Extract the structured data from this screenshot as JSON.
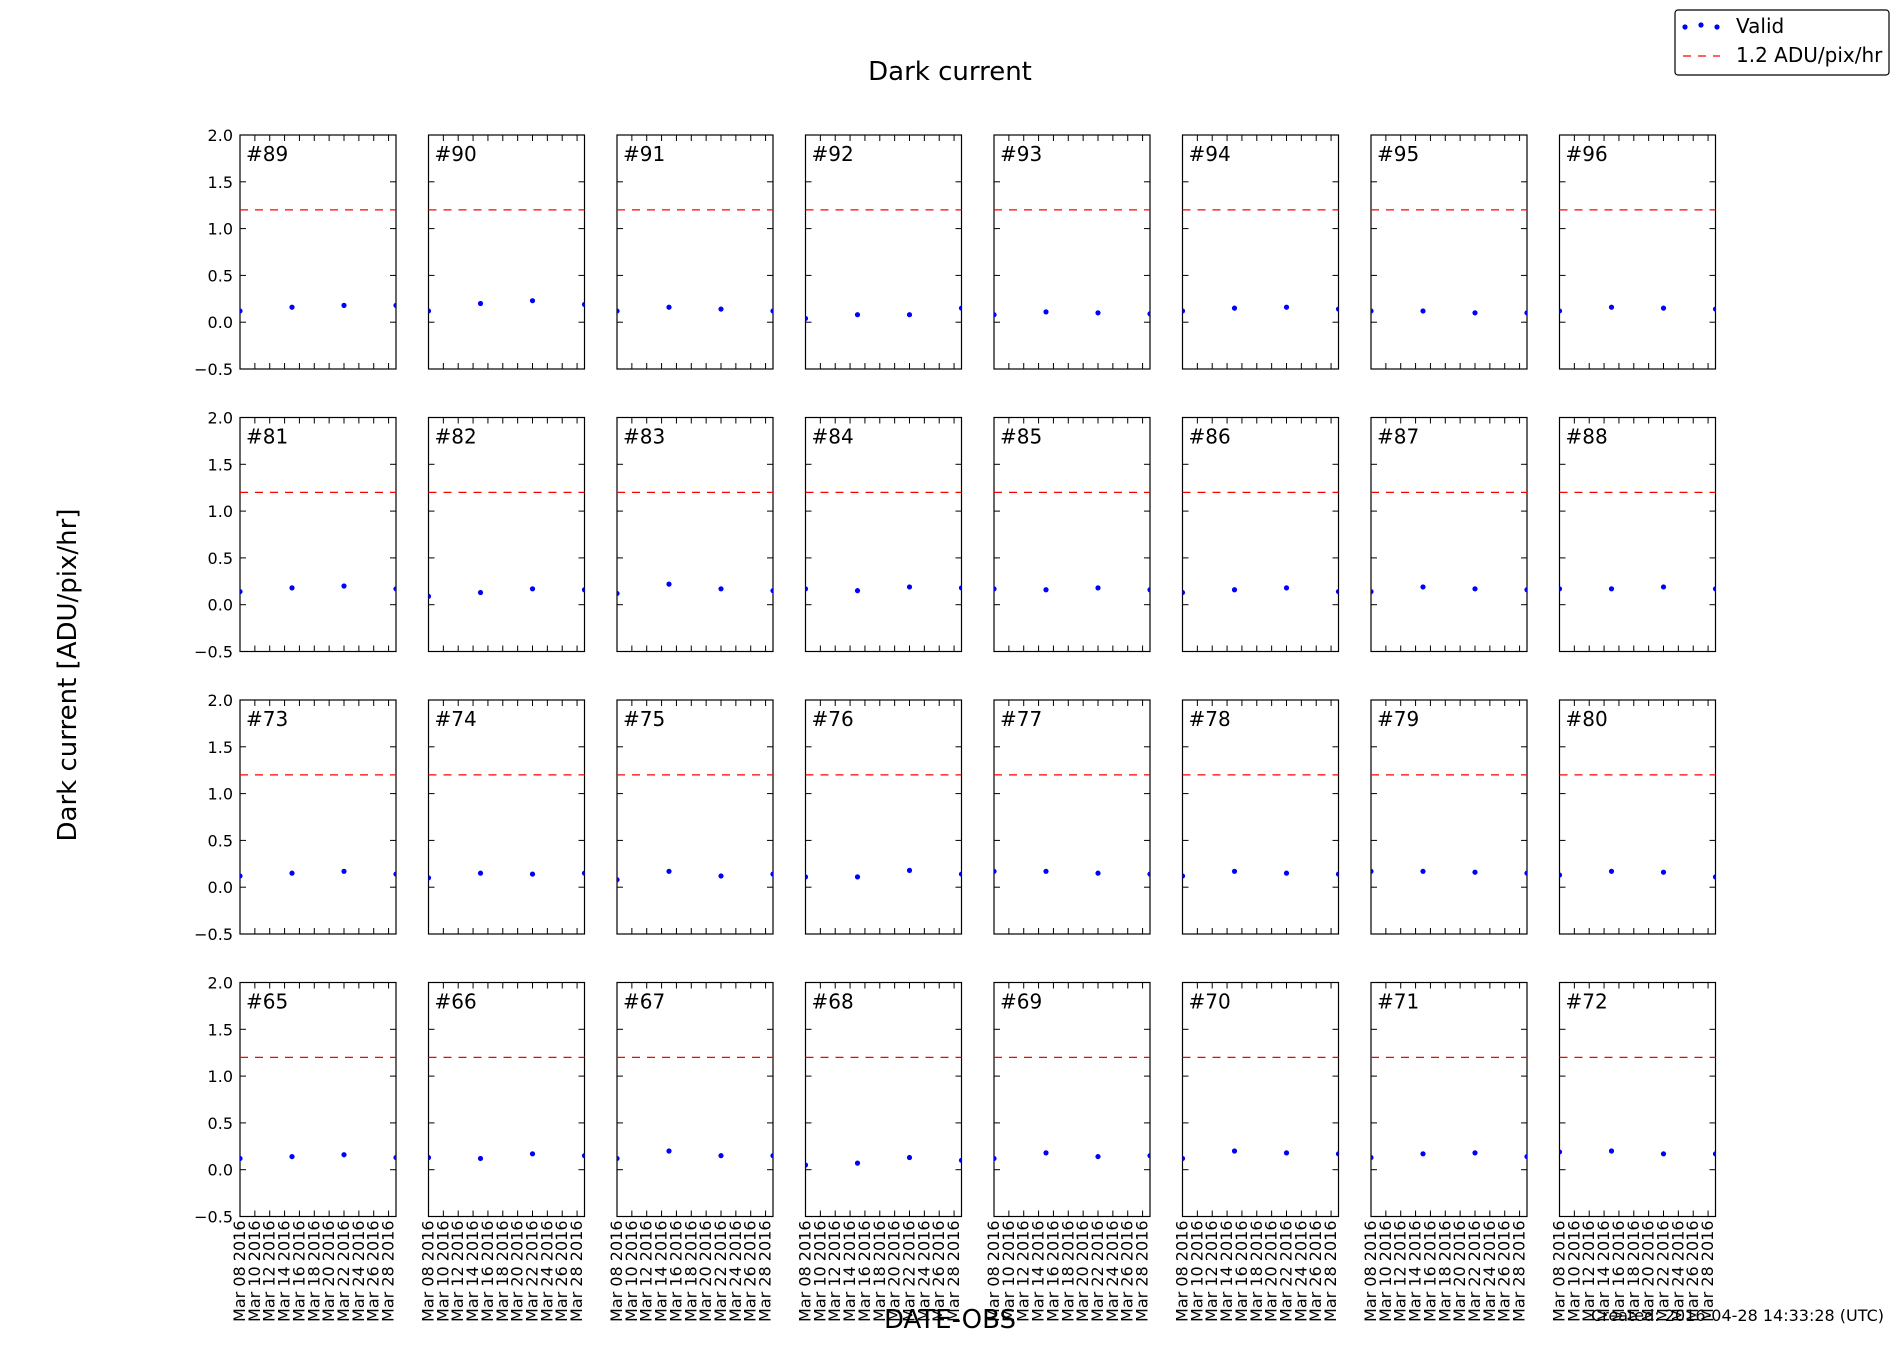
{
  "chart_data": {
    "type": "scatter",
    "title": "Dark current",
    "xlabel": "DATE-OBS",
    "ylabel": "Dark current [ADU/pix/hr]",
    "ylim": [
      -0.5,
      2.0
    ],
    "yticks": [
      "2.0",
      "1.5",
      "1.0",
      "0.5",
      "0.0",
      "−0.5"
    ],
    "xlim": [
      "2016-03-08",
      "2016-03-29"
    ],
    "xtick_labels": [
      "Mar 08 2016",
      "Mar 10 2016",
      "Mar 12 2016",
      "Mar 14 2016",
      "Mar 16 2016",
      "Mar 18 2016",
      "Mar 20 2016",
      "Mar 22 2016",
      "Mar 24 2016",
      "Mar 26 2016",
      "Mar 28 2016"
    ],
    "xtick_dates": [
      "2016-03-08",
      "2016-03-10",
      "2016-03-12",
      "2016-03-14",
      "2016-03-16",
      "2016-03-18",
      "2016-03-20",
      "2016-03-22",
      "2016-03-24",
      "2016-03-26",
      "2016-03-28"
    ],
    "sample_dates": [
      "2016-03-08",
      "2016-03-15",
      "2016-03-22",
      "2016-03-29"
    ],
    "threshold": {
      "value": 1.2,
      "label": "1.2 ADU/pix/hr",
      "color": "#ff0000",
      "style": "dashed"
    },
    "legend": {
      "location": "top-right",
      "entries": [
        "Valid",
        "1.2 ADU/pix/hr"
      ]
    },
    "point_color": "#0000ff",
    "series_label": "Valid",
    "grid": false,
    "panels": [
      {
        "label": "#89",
        "values": [
          0.12,
          0.16,
          0.18,
          0.18
        ]
      },
      {
        "label": "#90",
        "values": [
          0.12,
          0.2,
          0.23,
          0.19
        ]
      },
      {
        "label": "#91",
        "values": [
          0.12,
          0.16,
          0.14,
          0.12
        ]
      },
      {
        "label": "#92",
        "values": [
          0.04,
          0.08,
          0.08,
          0.15
        ]
      },
      {
        "label": "#93",
        "values": [
          0.08,
          0.11,
          0.1,
          0.09
        ]
      },
      {
        "label": "#94",
        "values": [
          0.12,
          0.15,
          0.16,
          0.14
        ]
      },
      {
        "label": "#95",
        "values": [
          0.12,
          0.12,
          0.1,
          0.1
        ]
      },
      {
        "label": "#96",
        "values": [
          0.12,
          0.16,
          0.15,
          0.14
        ]
      },
      {
        "label": "#81",
        "values": [
          0.14,
          0.18,
          0.2,
          0.17
        ]
      },
      {
        "label": "#82",
        "values": [
          0.09,
          0.13,
          0.17,
          0.16
        ]
      },
      {
        "label": "#83",
        "values": [
          0.12,
          0.22,
          0.17,
          0.15
        ]
      },
      {
        "label": "#84",
        "values": [
          0.17,
          0.15,
          0.19,
          0.18
        ]
      },
      {
        "label": "#85",
        "values": [
          0.17,
          0.16,
          0.18,
          0.16
        ]
      },
      {
        "label": "#86",
        "values": [
          0.13,
          0.16,
          0.18,
          0.14
        ]
      },
      {
        "label": "#87",
        "values": [
          0.14,
          0.19,
          0.17,
          0.16
        ]
      },
      {
        "label": "#88",
        "values": [
          0.17,
          0.17,
          0.19,
          0.17
        ]
      },
      {
        "label": "#73",
        "values": [
          0.12,
          0.15,
          0.17,
          0.14
        ]
      },
      {
        "label": "#74",
        "values": [
          0.1,
          0.15,
          0.14,
          0.15
        ]
      },
      {
        "label": "#75",
        "values": [
          0.08,
          0.17,
          0.12,
          0.14
        ]
      },
      {
        "label": "#76",
        "values": [
          0.11,
          0.11,
          0.18,
          0.14
        ]
      },
      {
        "label": "#77",
        "values": [
          0.17,
          0.17,
          0.15,
          0.14
        ]
      },
      {
        "label": "#78",
        "values": [
          0.12,
          0.17,
          0.15,
          0.14
        ]
      },
      {
        "label": "#79",
        "values": [
          0.17,
          0.17,
          0.16,
          0.15
        ]
      },
      {
        "label": "#80",
        "values": [
          0.13,
          0.17,
          0.16,
          0.11
        ]
      },
      {
        "label": "#65",
        "values": [
          0.12,
          0.14,
          0.16,
          0.13
        ]
      },
      {
        "label": "#66",
        "values": [
          0.13,
          0.12,
          0.17,
          0.15
        ]
      },
      {
        "label": "#67",
        "values": [
          0.12,
          0.2,
          0.15,
          0.15
        ]
      },
      {
        "label": "#68",
        "values": [
          0.05,
          0.07,
          0.13,
          0.1
        ]
      },
      {
        "label": "#69",
        "values": [
          0.12,
          0.18,
          0.14,
          0.15
        ]
      },
      {
        "label": "#70",
        "values": [
          0.12,
          0.2,
          0.18,
          0.17
        ]
      },
      {
        "label": "#71",
        "values": [
          0.13,
          0.17,
          0.18,
          0.14
        ]
      },
      {
        "label": "#72",
        "values": [
          0.19,
          0.2,
          0.17,
          0.17
        ]
      }
    ]
  },
  "footer": {
    "created": "Created: 2016-04-28 14:33:28 (UTC)"
  }
}
